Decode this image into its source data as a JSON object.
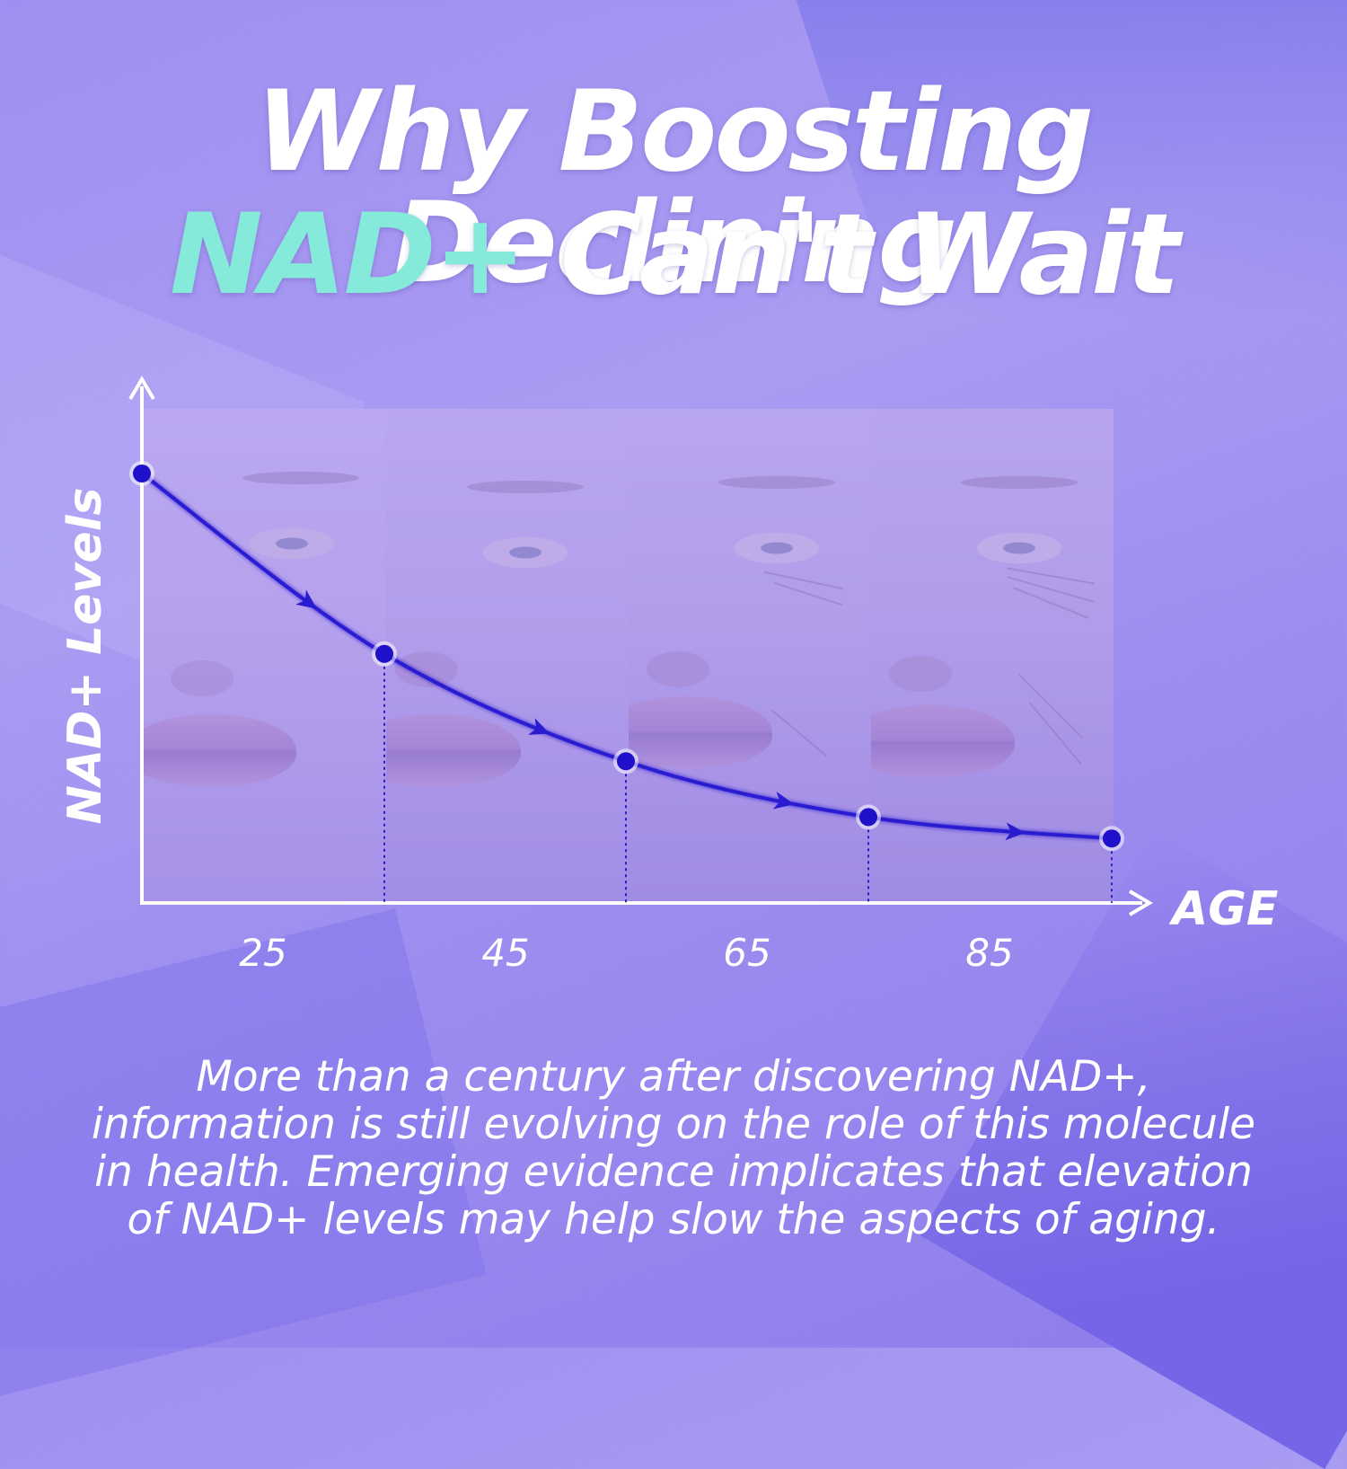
{
  "title": {
    "line1": "Why Boosting Declining",
    "line2_accent": "NAD+",
    "line2_rest": " Can't Wait"
  },
  "colors": {
    "background": "#a99cf2",
    "accent": "#86eadb",
    "curve": "#2a1bd0",
    "text": "#ffffff"
  },
  "chart_data": {
    "type": "line",
    "xlabel": "AGE",
    "ylabel": "NAD+ Levels",
    "tick_labels": [
      "25",
      "45",
      "65",
      "85"
    ],
    "y_scale_printed": false,
    "series": [
      {
        "values": [
          100,
          58,
          33,
          20,
          15
        ]
      }
    ]
  },
  "description": {
    "lines": [
      "More than a century after discovering NAD+,",
      "information is still evolving on the role of this molecule",
      "in health. Emerging evidence implicates that elevation",
      "of NAD+ levels may help slow the aspects of aging."
    ]
  }
}
